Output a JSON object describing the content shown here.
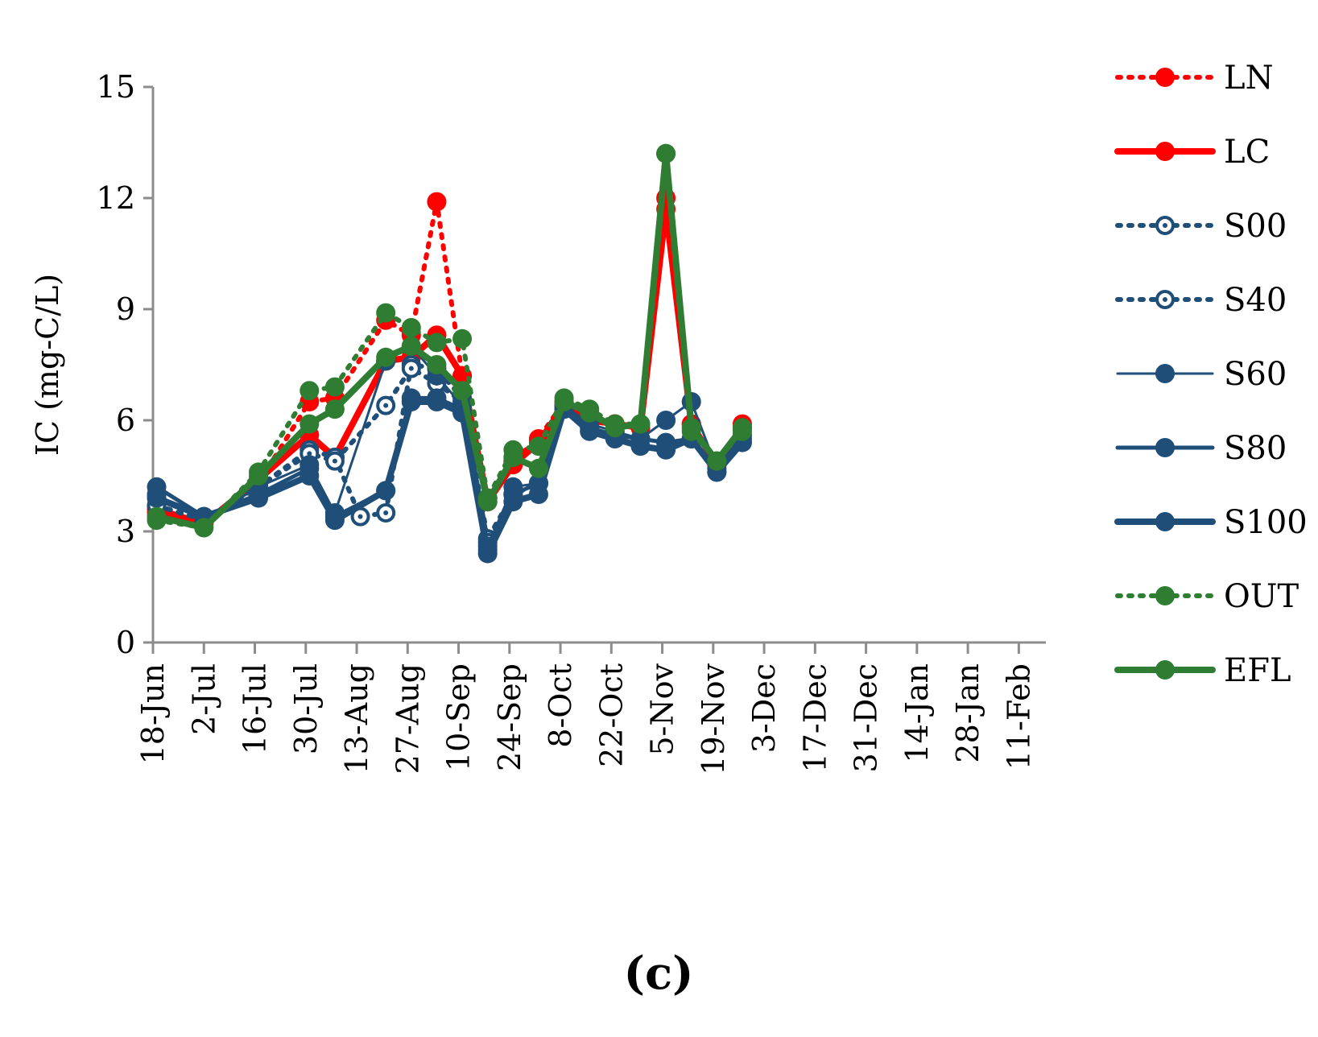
{
  "chart_data": {
    "type": "line",
    "ylabel": "IC (mg-C/L)",
    "xlabel": "",
    "panel_label": "(c)",
    "ylim": [
      0,
      15
    ],
    "yticks": [
      0,
      3,
      6,
      9,
      12,
      15
    ],
    "x_axis": {
      "start_day": 0,
      "end_day": 245,
      "tick_step_days": 14,
      "tick_labels": [
        "18-Jun",
        "2-Jul",
        "16-Jul",
        "30-Jul",
        "13-Aug",
        "27-Aug",
        "10-Sep",
        "24-Sep",
        "8-Oct",
        "22-Oct",
        "5-Nov",
        "19-Nov",
        "3-Dec",
        "17-Dec",
        "31-Dec",
        "14-Jan",
        "28-Jan",
        "11-Feb"
      ]
    },
    "legend_position": "right",
    "series": [
      {
        "name": "LN",
        "color": "#ff0000",
        "style": "dotted",
        "marker": "filled",
        "x": [
          1,
          14,
          29,
          43,
          50,
          64,
          71,
          78,
          85,
          92,
          99,
          106,
          113,
          120,
          127,
          134,
          141,
          148,
          155,
          162
        ],
        "y": [
          3.5,
          3.2,
          4.3,
          6.5,
          6.6,
          8.7,
          8.3,
          11.9,
          7.2,
          3.9,
          4.9,
          5.5,
          6.5,
          6.1,
          5.9,
          5.8,
          12.0,
          5.9,
          4.8,
          5.9
        ]
      },
      {
        "name": "LC",
        "color": "#ff0000",
        "style": "solid-thick",
        "marker": "filled",
        "x": [
          1,
          14,
          29,
          43,
          50,
          64,
          71,
          78,
          85,
          92,
          99,
          106,
          113,
          120,
          127,
          134,
          141,
          148,
          155,
          162
        ],
        "y": [
          3.6,
          3.2,
          4.4,
          5.6,
          5.0,
          7.6,
          7.7,
          8.3,
          7.2,
          3.8,
          4.8,
          5.4,
          6.4,
          6.0,
          5.9,
          5.8,
          11.7,
          5.9,
          4.8,
          5.8
        ]
      },
      {
        "name": "S00",
        "color": "#1f4e79",
        "style": "dotted",
        "marker": "hollow",
        "x": [
          1,
          14,
          29,
          43,
          50,
          57,
          64,
          71,
          78,
          85,
          92,
          99,
          106
        ],
        "y": [
          3.7,
          3.3,
          4.2,
          5.2,
          5.0,
          3.4,
          3.5,
          7.5,
          7.4,
          6.6,
          2.8,
          4.0,
          4.3
        ]
      },
      {
        "name": "S40",
        "color": "#1f4e79",
        "style": "dotted",
        "marker": "hollow",
        "x": [
          1,
          14,
          29,
          43,
          50,
          64,
          71,
          78,
          85,
          92,
          99,
          106
        ],
        "y": [
          3.7,
          3.3,
          4.2,
          5.1,
          4.9,
          6.4,
          7.4,
          7.0,
          6.5,
          2.7,
          4.0,
          4.3
        ]
      },
      {
        "name": "S60",
        "color": "#1f4e79",
        "style": "solid-thin",
        "marker": "filled",
        "x": [
          1,
          14,
          29,
          43,
          50,
          64,
          71,
          78,
          85,
          92,
          99,
          106,
          113,
          120,
          127,
          134,
          141,
          148,
          155,
          162
        ],
        "y": [
          4.0,
          3.3,
          4.2,
          4.8,
          3.5,
          7.6,
          8.0,
          7.2,
          6.4,
          2.6,
          4.2,
          4.3,
          6.4,
          5.9,
          5.7,
          5.5,
          6.0,
          6.5,
          4.7,
          5.6
        ]
      },
      {
        "name": "S80",
        "color": "#1f4e79",
        "style": "solid-med",
        "marker": "filled",
        "x": [
          1,
          14,
          29,
          43,
          50,
          64,
          71,
          78,
          85,
          92,
          99,
          106,
          113,
          120,
          127,
          134,
          141,
          148,
          155,
          162
        ],
        "y": [
          4.2,
          3.4,
          4.0,
          4.7,
          3.4,
          4.1,
          6.6,
          6.6,
          6.3,
          2.5,
          4.0,
          4.3,
          6.3,
          5.8,
          5.6,
          5.5,
          5.4,
          5.5,
          4.6,
          5.5
        ]
      },
      {
        "name": "S100",
        "color": "#1f4e79",
        "style": "solid-thick",
        "marker": "filled",
        "x": [
          1,
          14,
          29,
          43,
          50,
          64,
          71,
          78,
          85,
          92,
          99,
          106,
          113,
          120,
          127,
          134,
          141,
          148,
          155,
          162
        ],
        "y": [
          3.9,
          3.4,
          3.9,
          4.5,
          3.3,
          4.1,
          6.5,
          6.5,
          6.2,
          2.4,
          3.8,
          4.0,
          6.3,
          5.7,
          5.5,
          5.3,
          5.2,
          5.5,
          4.6,
          5.4
        ]
      },
      {
        "name": "OUT",
        "color": "#2e7d32",
        "style": "dotted",
        "marker": "filled",
        "x": [
          1,
          14,
          29,
          43,
          50,
          64,
          71,
          78,
          85,
          92,
          99,
          106,
          113,
          120,
          127,
          134,
          141,
          148,
          155,
          162
        ],
        "y": [
          3.3,
          3.1,
          4.6,
          6.8,
          6.9,
          8.9,
          8.5,
          8.1,
          8.2,
          3.9,
          5.2,
          5.3,
          6.6,
          6.3,
          5.9,
          5.9,
          13.2,
          5.7,
          4.9,
          5.7
        ]
      },
      {
        "name": "EFL",
        "color": "#2e7d32",
        "style": "solid-thick",
        "marker": "filled",
        "x": [
          1,
          14,
          29,
          43,
          50,
          64,
          71,
          78,
          85,
          92,
          99,
          106,
          113,
          120,
          127,
          134,
          141,
          148,
          155,
          162
        ],
        "y": [
          3.4,
          3.1,
          4.5,
          5.9,
          6.3,
          7.7,
          8.0,
          7.5,
          6.8,
          3.8,
          5.0,
          4.7,
          6.5,
          6.2,
          5.8,
          5.9,
          13.2,
          5.8,
          4.9,
          5.8
        ]
      }
    ]
  }
}
